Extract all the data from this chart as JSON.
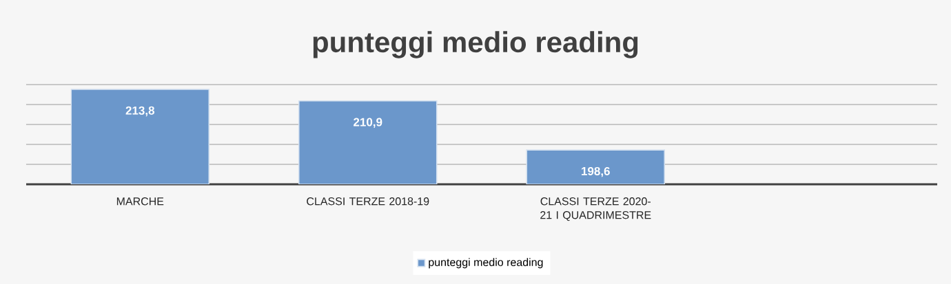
{
  "chart_data": {
    "type": "bar",
    "title": "punteggi medio reading",
    "categories": [
      "MARCHE",
      "CLASSI TERZE 2018-19",
      "CLASSI TERZE 2020-21 I QUADRIMESTRE",
      null
    ],
    "series": [
      {
        "name": "punteggi medio reading",
        "color": "#6b97cb",
        "values": [
          213.8,
          210.9,
          198.6,
          null
        ],
        "value_labels": [
          "213,8",
          "210,9",
          "198,6",
          null
        ]
      }
    ],
    "ylim": [
      190,
      215
    ],
    "yticks": [
      {
        "value": 195,
        "label": null
      },
      {
        "value": 200,
        "label": null
      },
      {
        "value": 205,
        "label": null
      },
      {
        "value": 210,
        "label": null
      },
      {
        "value": 215,
        "label": null
      }
    ],
    "grid": "y",
    "legend": "bottom",
    "tick_labels": "x"
  }
}
